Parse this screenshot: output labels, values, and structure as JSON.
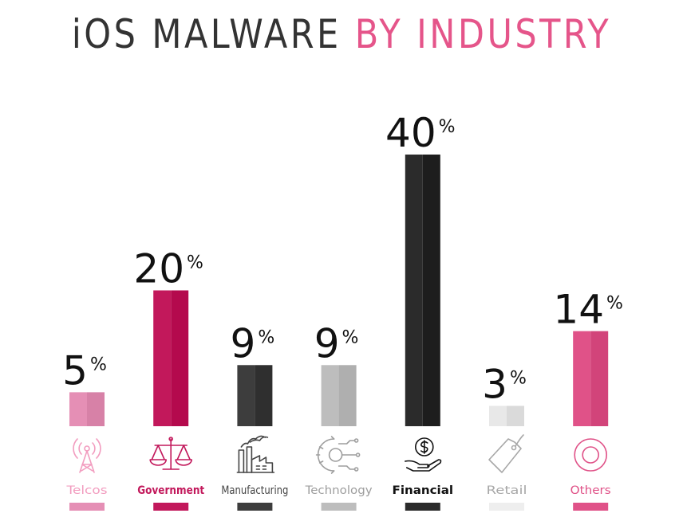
{
  "title": {
    "part1": "iOS MALWARE",
    "part2": "BY INDUSTRY",
    "part1_color": "#333333",
    "part2_color": "#e5558a"
  },
  "chart_data": {
    "type": "bar",
    "title": "iOS MALWARE BY INDUSTRY",
    "categories": [
      "Telcos",
      "Government",
      "Manufacturing",
      "Technology",
      "Financial",
      "Retail",
      "Others"
    ],
    "values": [
      5,
      20,
      9,
      9,
      40,
      3,
      14
    ],
    "value_suffix": "%",
    "colors": [
      "#e58fb5",
      "#c2185b",
      "#3d3d3d",
      "#bdbdbd",
      "#2b2b2b",
      "#e8e8e8",
      "#e05288"
    ],
    "label_colors": [
      "#f29cbf",
      "#c2185b",
      "#444444",
      "#9e9e9e",
      "#111111",
      "#a8a8a8",
      "#e05288"
    ],
    "icons": [
      "antenna-icon",
      "scales-icon",
      "factory-icon",
      "gear-circuit-icon",
      "money-hand-icon",
      "price-tag-icon",
      "ring-icon"
    ],
    "xlabel": "",
    "ylabel": "",
    "ylim": [
      0,
      40
    ],
    "grid": false,
    "legend": "none"
  }
}
